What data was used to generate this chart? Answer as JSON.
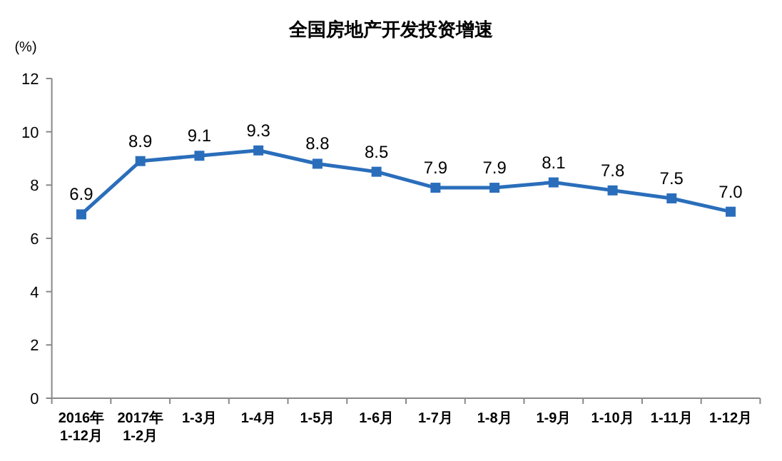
{
  "chart_data": {
    "type": "line",
    "title": "全国房地产开发投资增速",
    "ylabel": "(%)",
    "categories": [
      "2016年\n1-12月",
      "2017年\n1-2月",
      "1-3月",
      "1-4月",
      "1-5月",
      "1-6月",
      "1-7月",
      "1-8月",
      "1-9月",
      "1-10月",
      "1-11月",
      "1-12月"
    ],
    "series": [
      {
        "color": "#2a6ebb",
        "values": [
          6.9,
          8.9,
          9.1,
          9.3,
          8.8,
          8.5,
          7.9,
          7.9,
          8.1,
          7.8,
          7.5,
          7.0
        ],
        "value_labels": [
          "6.9",
          "8.9",
          "9.1",
          "9.3",
          "8.8",
          "8.5",
          "7.9",
          "7.9",
          "8.1",
          "7.8",
          "7.5",
          "7.0"
        ]
      }
    ],
    "ylim": [
      0,
      12
    ],
    "yticks": [
      0,
      2,
      4,
      6,
      8,
      10,
      12
    ],
    "marker": "square",
    "grid": false
  }
}
